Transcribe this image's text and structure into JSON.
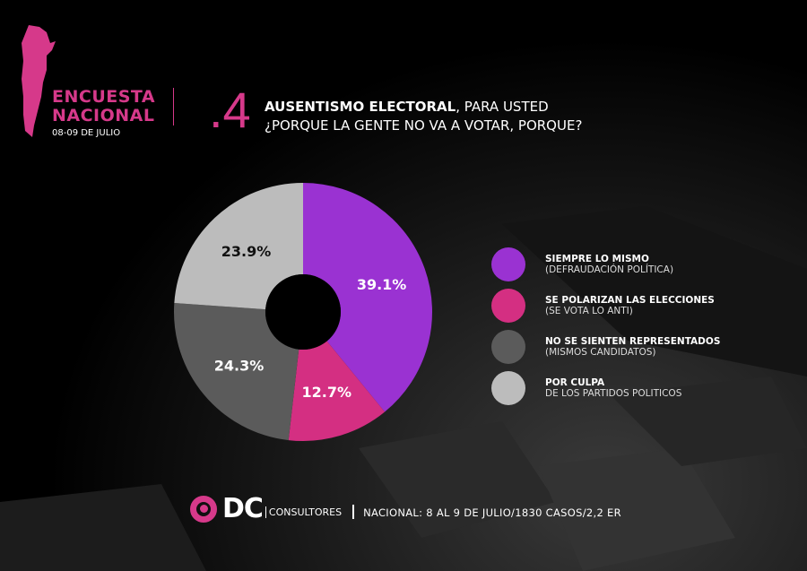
{
  "header": {
    "brand_line1": "ENCUESTA",
    "brand_line2": "NACIONAL",
    "brand_date": "08-09 DE JULIO",
    "question_number": ".4",
    "question_bold": "AUSENTISMO ELECTORAL",
    "question_rest": ", PARA USTED",
    "question_line2": "¿PORQUE LA GENTE NO VA A VOTAR, PORQUE?"
  },
  "colors": {
    "accent": "#d6398a"
  },
  "chart_data": {
    "type": "pie",
    "donut": true,
    "start": "top",
    "direction": "clockwise",
    "slices": [
      {
        "label": "SIEMPRE LO MISMO",
        "sublabel": "(DEFRAUDACIÓN POLÍTICA)",
        "value": 39.1,
        "display": "39.1%",
        "color": "#9a32d2"
      },
      {
        "label": "SE POLARIZAN LAS ELECCIONES",
        "sublabel": "(SE VOTA LO ANTI)",
        "value": 12.7,
        "display": "12.7%",
        "color": "#d42f82"
      },
      {
        "label": "NO SE SIENTEN REPRESENTADOS",
        "sublabel": "(MISMOS CANDIDATOS)",
        "value": 24.3,
        "display": "24.3%",
        "color": "#5b5b5b"
      },
      {
        "label": "POR CULPA",
        "sublabel": " DE LOS PARTIDOS POLITICOS",
        "value": 23.9,
        "display": "23.9%",
        "color": "#bcbcbc"
      }
    ]
  },
  "footer": {
    "logo_text": "DC",
    "logo_sub": "CONSULTORES",
    "info": "NACIONAL: 8 AL 9 DE JULIO/1830 CASOS/2,2 ER"
  }
}
